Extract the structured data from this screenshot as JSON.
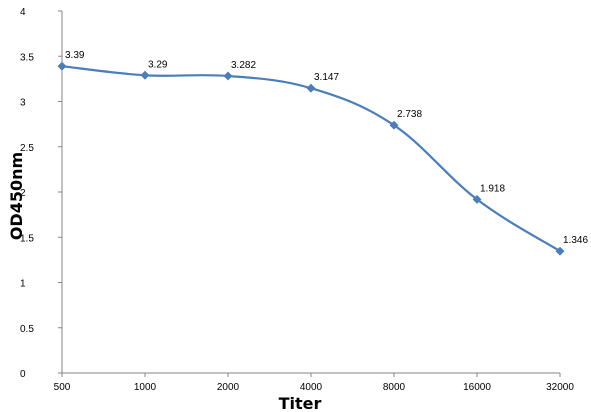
{
  "chart_data": {
    "type": "line",
    "categories": [
      "500",
      "1000",
      "2000",
      "4000",
      "8000",
      "16000",
      "32000"
    ],
    "series": [
      {
        "values": [
          3.39,
          3.29,
          3.282,
          3.147,
          2.738,
          1.918,
          1.346
        ],
        "labels": [
          "3.39",
          "3.29",
          "3.282",
          "3.147",
          "2.738",
          "1.918",
          "1.346"
        ],
        "color": "#4A7EBB",
        "marker": "diamond",
        "smooth": true
      }
    ],
    "xlabel": "Titer",
    "ylabel": "OD450nm",
    "ylim": [
      0,
      4
    ],
    "yticks": [
      "0",
      "0.5",
      "1",
      "1.5",
      "2",
      "2.5",
      "3",
      "3.5",
      "4"
    ],
    "grid": false,
    "legend": "none"
  }
}
